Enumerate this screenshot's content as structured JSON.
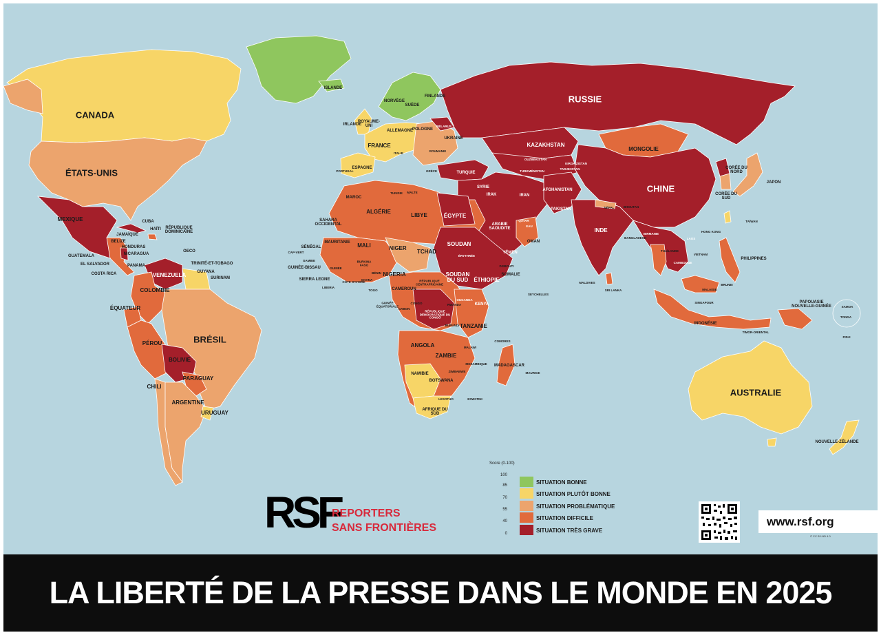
{
  "title": "LA LIBERTÉ DE LA PRESSE DANS LE MONDE EN 2025",
  "colors": {
    "ocean": "#b7d5df",
    "bonne": "#8fc65e",
    "plutot_bonne": "#f7d567",
    "problematique": "#eca46d",
    "difficile": "#e16a3c",
    "tres_grave": "#a41f2a"
  },
  "legend": {
    "title": "Score (0-100)",
    "ticks": [
      "100",
      "85",
      "70",
      "55",
      "40",
      "0"
    ],
    "items": [
      {
        "label": "SITUATION BONNE",
        "color": "#8fc65e"
      },
      {
        "label": "SITUATION PLUTÔT BONNE",
        "color": "#f7d567"
      },
      {
        "label": "SITUATION PROBLÉMATIQUE",
        "color": "#eca46d"
      },
      {
        "label": "SITUATION DIFFICILE",
        "color": "#e16a3c"
      },
      {
        "label": "SITUATION TRÈS GRAVE",
        "color": "#a41f2a"
      }
    ]
  },
  "logo": {
    "mark": "RSF",
    "line1": "REPORTERS",
    "line2": "SANS FRONTIÈRES"
  },
  "url": "www.rsf.org",
  "copyright": "© CC BY-ND 4.0",
  "countries": {
    "canada": "CANADA",
    "usa": "ÉTATS-UNIS",
    "mexique": "MEXIQUE",
    "cuba": "CUBA",
    "haiti": "HAÏTI",
    "rep_dom": "RÉPUBLIQUE DOMINICAINE",
    "jamaique": "JAMAÏQUE",
    "belize": "BELIZE",
    "honduras": "HONDURAS",
    "nicaragua": "NICARAGUA",
    "guatemala": "GUATEMALA",
    "el_salvador": "EL SALVADOR",
    "costa_rica": "COSTA RICA",
    "panama": "PANAMA",
    "oecd": "OECO",
    "trinite": "TRINITÉ-ET-TOBAGO",
    "guyana": "GUYANA",
    "surinam": "SURINAM",
    "venezuela": "VENEZUELA",
    "colombie": "COLOMBIE",
    "equateur": "ÉQUATEUR",
    "perou": "PÉROU",
    "bresil": "BRÉSIL",
    "bolivie": "BOLIVIE",
    "paraguay": "PARAGUAY",
    "chili": "CHILI",
    "argentine": "ARGENTINE",
    "uruguay": "URUGUAY",
    "islande": "ISLANDE",
    "norvege": "NORVÈGE",
    "suede": "SUÈDE",
    "finlande": "FINLANDE",
    "irlande": "IRLANDE",
    "royaume_uni": "ROYAUME-UNI",
    "allemagne": "ALLEMAGNE",
    "pologne": "POLOGNE",
    "belarus": "BÉLARUS",
    "ukraine": "UKRAINE",
    "france": "FRANCE",
    "italie": "ITALIE",
    "espagne": "ESPAGNE",
    "portugal": "PORTUGAL",
    "roumanie": "ROUMANIE",
    "grece": "GRÈCE",
    "turquie": "TURQUIE",
    "russie": "RUSSIE",
    "kazakhstan": "KAZAKHSTAN",
    "mongolie": "MONGOLIE",
    "chine": "CHINE",
    "coree_nord": "CORÉE DU NORD",
    "coree_sud": "CORÉE DU SUD",
    "japon": "JAPON",
    "taiwan": "TAÏWAN",
    "hong_kong": "HONG KONG",
    "ouzbekistan": "OUZBÉKISTAN",
    "turkmenistan": "TURKMÉNISTAN",
    "kirghizistan": "KIRGHIZISTAN",
    "tadjikistan": "TADJIKISTAN",
    "afghanistan": "AFGHANISTAN",
    "pakistan": "PAKISTAN",
    "iran": "IRAN",
    "irak": "IRAK",
    "syrie": "SYRIE",
    "arabie": "ARABIE SAOUDITE",
    "yemen": "YÉMEN",
    "oman": "OMAN",
    "qatar": "QATAR",
    "emirats": "EAU",
    "inde": "INDE",
    "nepal": "NÉPAL",
    "bhoutan": "BHOUTAN",
    "bangladesh": "BANGLADESH",
    "birmanie": "BIRMANIE",
    "thailande": "THAÏLANDE",
    "laos": "LAOS",
    "vietnam": "VIETNAM",
    "cambodge": "CAMBODGE",
    "philippines": "PHILIPPINES",
    "malaisie": "MALAISIE",
    "singapour": "SINGAPOUR",
    "brunei": "BRUNEI",
    "indonesie": "INDONÉSIE",
    "timor": "TIMOR-ORIENTAL",
    "papouasie": "PAPOUASIE NOUVELLE-GUINÉE",
    "australie": "AUSTRALIE",
    "nz": "NOUVELLE-ZÉLANDE",
    "fidji": "FIDJI",
    "samoa": "SAMOA",
    "tonga": "TONGA",
    "maldives": "MALDIVES",
    "sri_lanka": "SRI LANKA",
    "seychelles": "SEYCHELLES",
    "comores": "COMORES",
    "maurice": "MAURICE",
    "maroc": "MAROC",
    "algerie": "ALGÉRIE",
    "tunisie": "TUNISIE",
    "malte": "MALTE",
    "libye": "LIBYE",
    "egypte": "ÉGYPTE",
    "sahara": "SAHARA OCCIDENTAL",
    "mauritanie": "MAURITANIE",
    "mali": "MALI",
    "niger": "NIGER",
    "tchad": "TCHAD",
    "soudan": "SOUDAN",
    "erythree": "ÉRYTHRÉE",
    "djibouti": "DJIBOUTI",
    "ethiopie": "ÉTHIOPIE",
    "somalie": "SOMALIE",
    "senegal": "SÉNÉGAL",
    "cap_vert": "CAP-VERT",
    "gambie": "GAMBIE",
    "guinee_bissau": "GUINÉE-BISSAU",
    "guinee": "GUINÉE",
    "sierra_leone": "SIERRA LEONE",
    "liberia": "LIBERIA",
    "cote_ivoire": "CÔTE D'IVOIRE",
    "burkina": "BURKINA FASO",
    "ghana": "GHANA",
    "togo": "TOGO",
    "benin": "BÉNIN",
    "nigeria": "NIGERIA",
    "cameroun": "CAMEROUN",
    "rca": "RÉPUBLIQUE CENTRAFRICAINE",
    "soudan_sud": "SOUDAN DU SUD",
    "guinee_eq": "GUINÉE ÉQUATORIALE",
    "gabon": "GABON",
    "congo": "CONGO",
    "rdc": "RÉPUBLIQUE DÉMOCRATIQUE DU CONGO",
    "ouganda": "OUGANDA",
    "kenya": "KENYA",
    "rwanda": "RWANDA",
    "burundi": "BURUNDI",
    "tanzanie": "TANZANIE",
    "angola": "ANGOLA",
    "zambie": "ZAMBIE",
    "malawi": "MALAWI",
    "mozambique": "MOZAMBIQUE",
    "zimbabwe": "ZIMBABWE",
    "namibie": "NAMIBIE",
    "botswana": "BOTSWANA",
    "afrique_sud": "AFRIQUE DU SUD",
    "lesotho": "LESOTHO",
    "eswatini": "ESWATINI",
    "madagascar": "MADAGASCAR"
  }
}
